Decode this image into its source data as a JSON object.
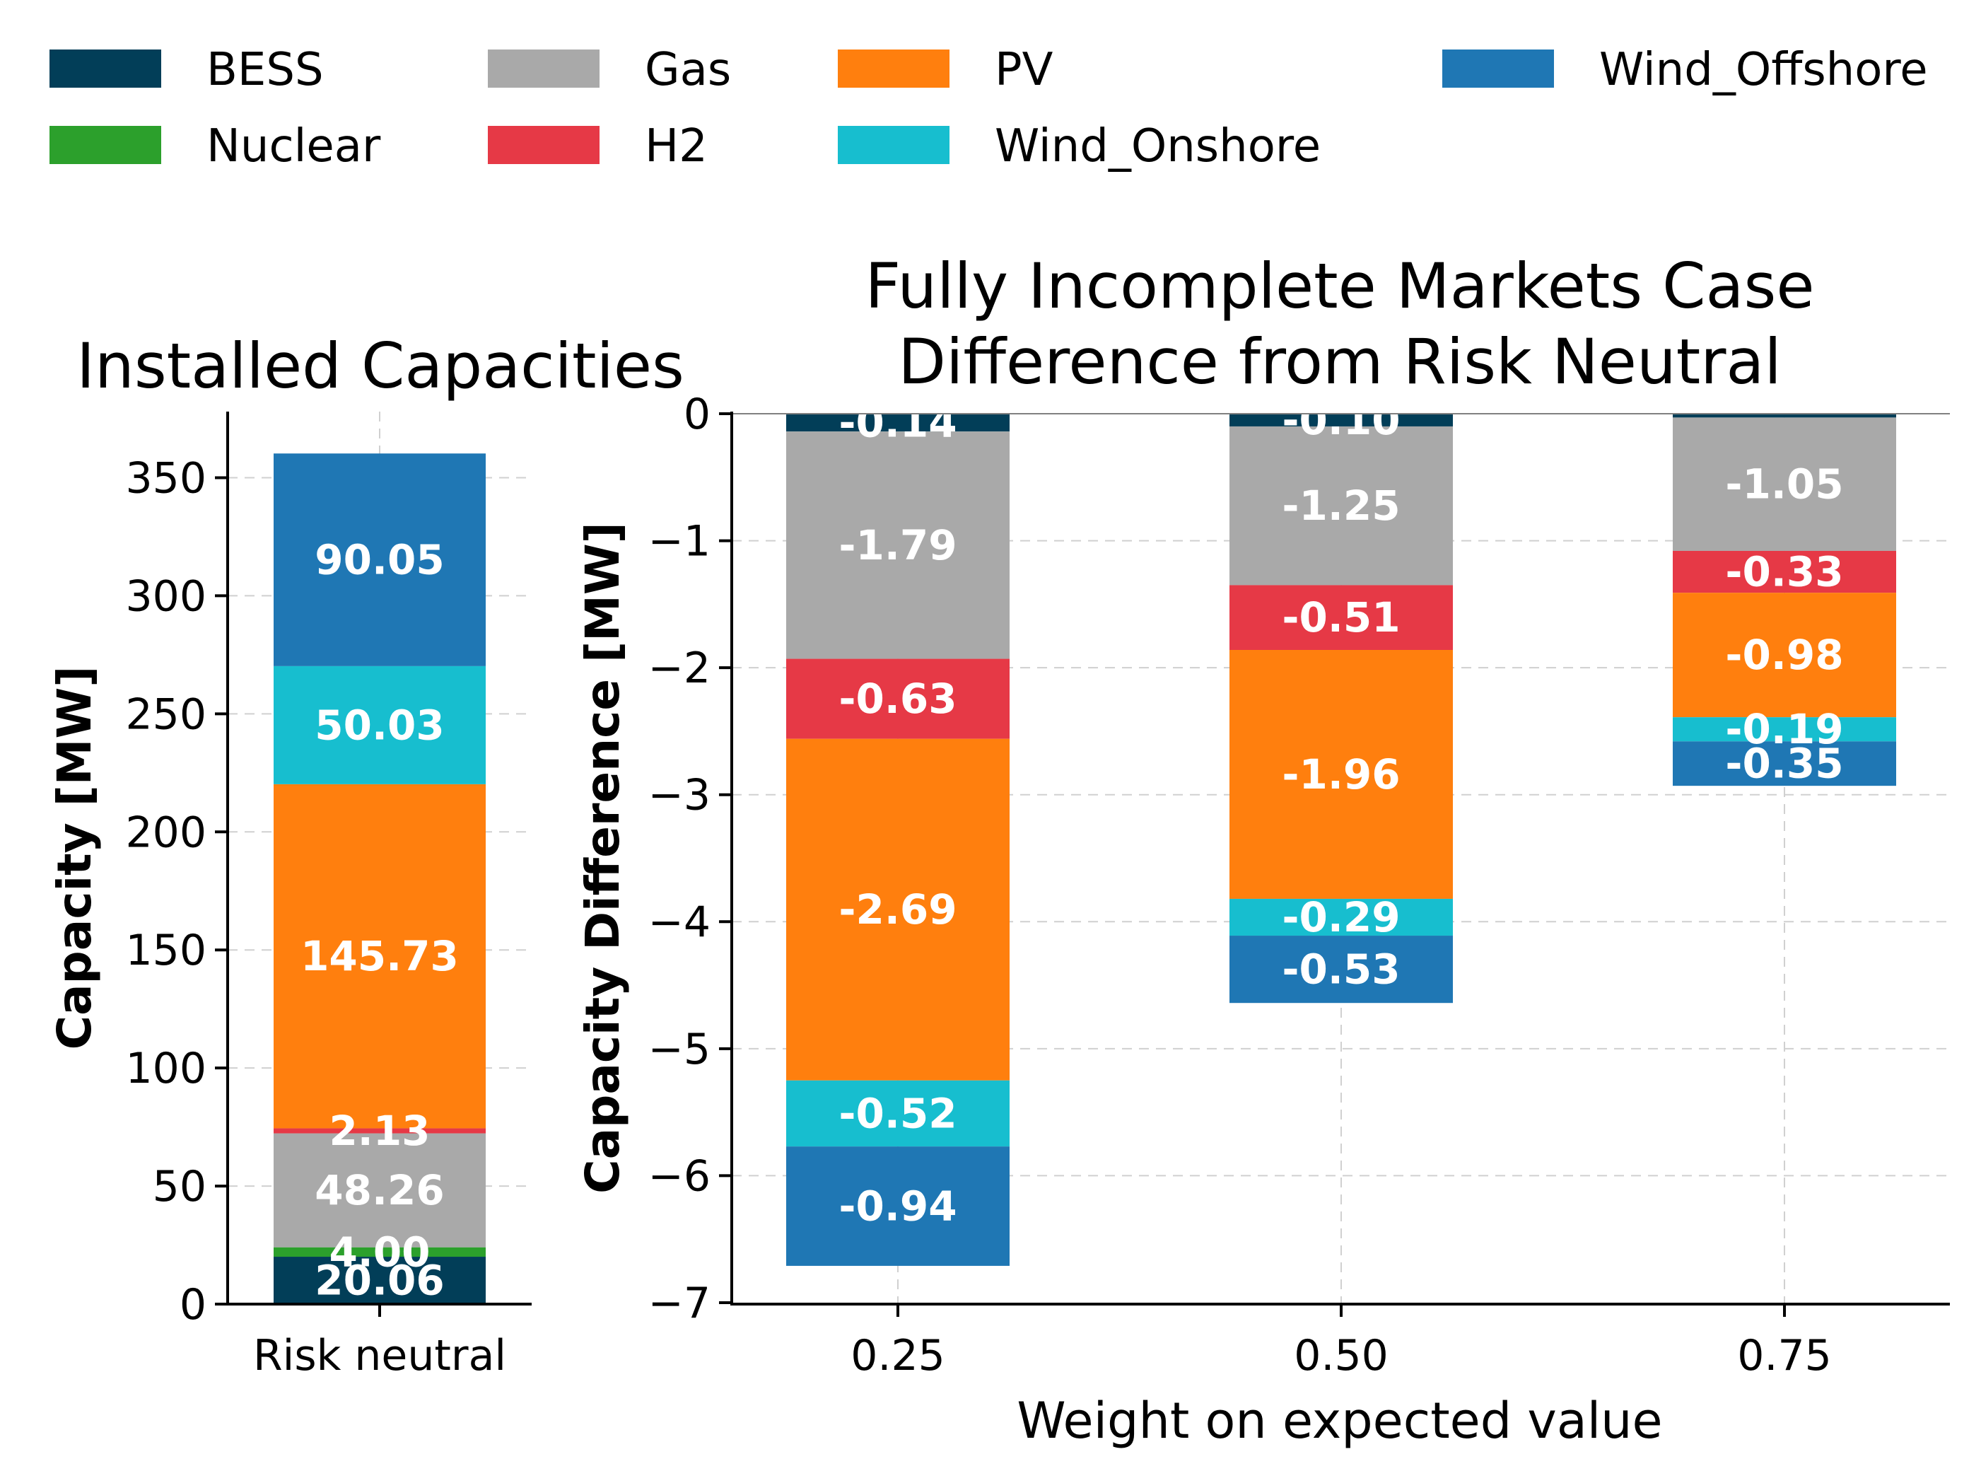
{
  "colors": {
    "BESS": "#023e58",
    "Nuclear": "#2ca02c",
    "Gas": "#a9a9a9",
    "H2": "#e63946",
    "PV": "#ff7f0e",
    "Wind_Onshore": "#17becf",
    "Wind_Offshore": "#1f77b4"
  },
  "legend": [
    "BESS",
    "Gas",
    "PV",
    "Wind_Offshore",
    "Nuclear",
    "H2",
    "Wind_Onshore"
  ],
  "chart_data": [
    {
      "type": "bar",
      "stacked": true,
      "title": "Installed Capacities",
      "ylabel": "Capacity [MW]",
      "xlabel": "",
      "categories": [
        "Risk neutral"
      ],
      "ylim": [
        0,
        378
      ],
      "yticks": [
        "0",
        "50",
        "100",
        "150",
        "200",
        "250",
        "300",
        "350"
      ],
      "grid": true,
      "series": [
        {
          "name": "BESS",
          "values": [
            20.06
          ],
          "labels": [
            "20.06"
          ]
        },
        {
          "name": "Nuclear",
          "values": [
            4.0
          ],
          "labels": [
            "4.00"
          ]
        },
        {
          "name": "Gas",
          "values": [
            48.26
          ],
          "labels": [
            "48.26"
          ]
        },
        {
          "name": "H2",
          "values": [
            2.13
          ],
          "labels": [
            "2.13"
          ]
        },
        {
          "name": "PV",
          "values": [
            145.73
          ],
          "labels": [
            "145.73"
          ]
        },
        {
          "name": "Wind_Onshore",
          "values": [
            50.03
          ],
          "labels": [
            "50.03"
          ]
        },
        {
          "name": "Wind_Offshore",
          "values": [
            90.05
          ],
          "labels": [
            "90.05"
          ]
        }
      ]
    },
    {
      "type": "bar",
      "stacked": true,
      "title": "Fully Incomplete Markets Case\nDifference from Risk Neutral",
      "title_lines": [
        "Fully Incomplete Markets Case",
        "Difference from Risk Neutral"
      ],
      "ylabel": "Capacity Difference [MW]",
      "xlabel": "Weight on expected value",
      "categories": [
        "0.25",
        "0.50",
        "0.75"
      ],
      "ylim": [
        -7,
        0
      ],
      "yticks": [
        "0",
        "−1",
        "−2",
        "−3",
        "−4",
        "−5",
        "−6",
        "−7"
      ],
      "grid": true,
      "series": [
        {
          "name": "BESS",
          "values": [
            -0.14,
            -0.1,
            -0.03
          ],
          "labels": [
            "-0.14",
            "-0.10",
            ""
          ]
        },
        {
          "name": "Gas",
          "values": [
            -1.79,
            -1.25,
            -1.05
          ],
          "labels": [
            "-1.79",
            "-1.25",
            "-1.05"
          ]
        },
        {
          "name": "H2",
          "values": [
            -0.63,
            -0.51,
            -0.33
          ],
          "labels": [
            "-0.63",
            "-0.51",
            "-0.33"
          ]
        },
        {
          "name": "PV",
          "values": [
            -2.69,
            -1.96,
            -0.98
          ],
          "labels": [
            "-2.69",
            "-1.96",
            "-0.98"
          ]
        },
        {
          "name": "Wind_Onshore",
          "values": [
            -0.52,
            -0.29,
            -0.19
          ],
          "labels": [
            "-0.52",
            "-0.29",
            "-0.19"
          ]
        },
        {
          "name": "Wind_Offshore",
          "values": [
            -0.94,
            -0.53,
            -0.35
          ],
          "labels": [
            "-0.94",
            "-0.53",
            "-0.35"
          ]
        }
      ]
    }
  ]
}
